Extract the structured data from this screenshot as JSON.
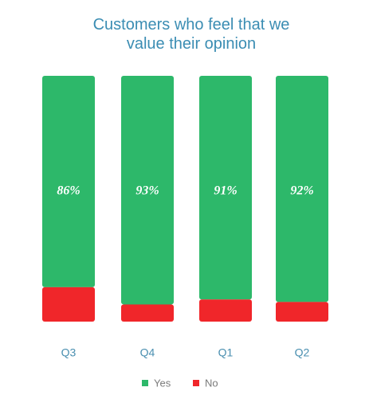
{
  "chart_data": {
    "type": "stacked-bar",
    "title": "Customers who feel that we value their opinion",
    "categories": [
      "Q3",
      "Q4",
      "Q1",
      "Q2"
    ],
    "series": [
      {
        "name": "Yes",
        "color": "#2db86a",
        "values": [
          86,
          93,
          91,
          92
        ],
        "value_labels": [
          "86%",
          "93%",
          "91%",
          "92%"
        ]
      },
      {
        "name": "No",
        "color": "#f0262a",
        "values": [
          14,
          7,
          9,
          8
        ]
      }
    ]
  }
}
